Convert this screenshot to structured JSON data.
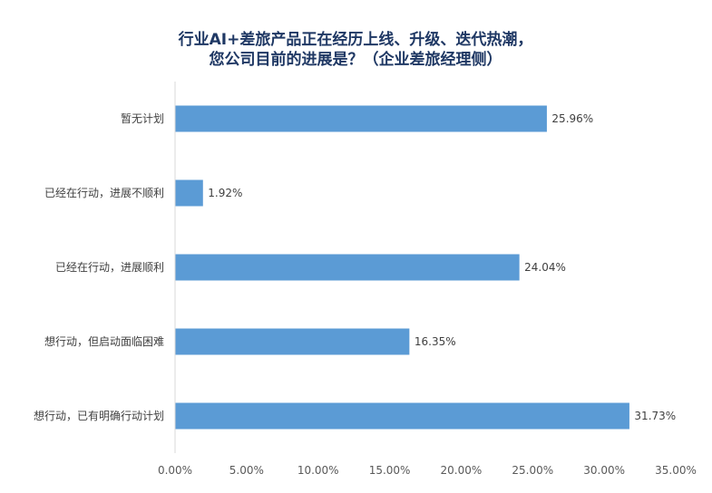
{
  "chart_data": {
    "type": "bar",
    "orientation": "horizontal",
    "title_lines": [
      "行业AI+差旅产品正在经历上线、升级、迭代热潮，",
      "您公司目前的进展是？（企业差旅经理侧）"
    ],
    "categories": [
      "暂无计划",
      "已经在行动，进展不顺利",
      "已经在行动，进展顺利",
      "想行动，但启动面临困难",
      "想行动，已有明确行动计划"
    ],
    "values": [
      25.96,
      1.92,
      24.04,
      16.35,
      31.73
    ],
    "value_labels": [
      "25.96%",
      "1.92%",
      "24.04%",
      "16.35%",
      "31.73%"
    ],
    "xlim": [
      0,
      35
    ],
    "x_ticks": [
      "0.00%",
      "5.00%",
      "10.00%",
      "15.00%",
      "20.00%",
      "25.00%",
      "30.00%",
      "35.00%"
    ],
    "grid": false,
    "legend": "none",
    "colors": {
      "bar": "#5b9bd5",
      "title": "#1f3864",
      "text": "#404040"
    }
  }
}
